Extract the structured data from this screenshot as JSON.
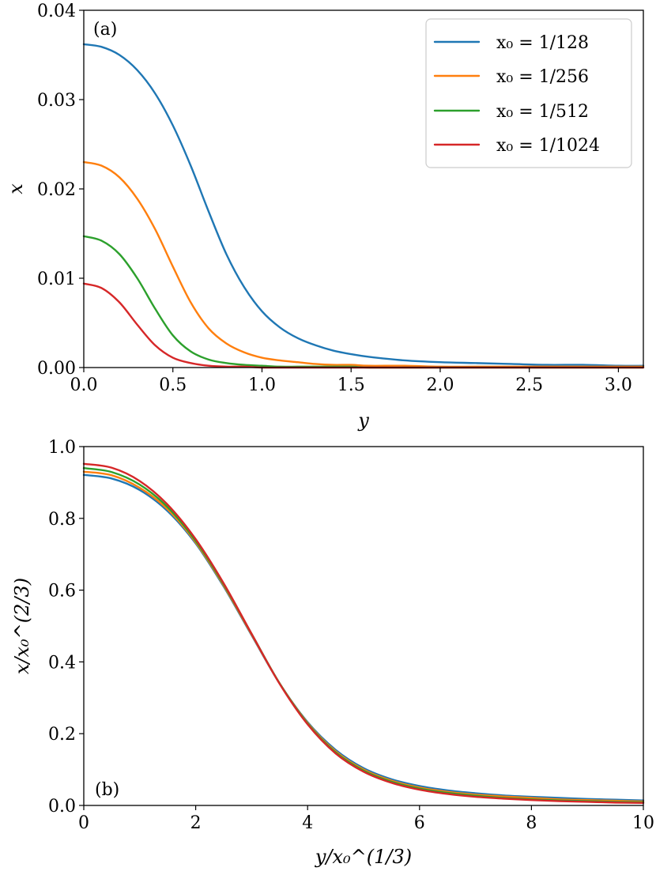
{
  "chart_data": [
    {
      "type": "line",
      "panel_label": "(a)",
      "xlabel": "y",
      "ylabel": "x",
      "xlim": [
        0,
        3.14
      ],
      "ylim": [
        0,
        0.04
      ],
      "xticks": [
        0,
        0.5,
        1.0,
        1.5,
        2.0,
        2.5,
        3.0
      ],
      "xtick_labels": [
        "0.0",
        "0.5",
        "1.0",
        "1.5",
        "2.0",
        "2.5",
        "3.0"
      ],
      "yticks": [
        0,
        0.01,
        0.02,
        0.03,
        0.04
      ],
      "ytick_labels": [
        "0.00",
        "0.01",
        "0.02",
        "0.03",
        "0.04"
      ],
      "grid": false,
      "legend_position": "top-right",
      "x": [
        0,
        0.1,
        0.2,
        0.3,
        0.4,
        0.5,
        0.6,
        0.7,
        0.8,
        0.9,
        1.0,
        1.1,
        1.2,
        1.3,
        1.4,
        1.5,
        1.6,
        1.8,
        2.0,
        2.2,
        2.4,
        2.6,
        2.8,
        3.0,
        3.14
      ],
      "series": [
        {
          "name": "x₀ = 1/128",
          "color": "#1f77b4",
          "values": [
            0.0362,
            0.0359,
            0.035,
            0.0333,
            0.0307,
            0.0271,
            0.0226,
            0.0175,
            0.0127,
            0.009,
            0.0063,
            0.0045,
            0.0033,
            0.0025,
            0.0019,
            0.0015,
            0.0012,
            0.0008,
            0.0006,
            0.0005,
            0.0004,
            0.0003,
            0.0003,
            0.0002,
            0.0002
          ]
        },
        {
          "name": "x₀ = 1/256",
          "color": "#ff7f0e",
          "values": [
            0.023,
            0.0226,
            0.0213,
            0.0189,
            0.0155,
            0.0113,
            0.0073,
            0.0044,
            0.0027,
            0.0017,
            0.0011,
            0.0008,
            0.0006,
            0.0004,
            0.0003,
            0.0003,
            0.0002,
            0.0002,
            0.0001,
            0.0001,
            0.0001,
            0.0001,
            0.0001,
            0.0001,
            0.0001
          ]
        },
        {
          "name": "x₀ = 1/512",
          "color": "#2ca02c",
          "values": [
            0.0147,
            0.0142,
            0.0127,
            0.01,
            0.0066,
            0.0036,
            0.0018,
            0.0009,
            0.0005,
            0.0003,
            0.0002,
            0.0001,
            0.0001,
            0.0001,
            0.0001,
            0.0001,
            0.0,
            0.0,
            0.0,
            0.0,
            0.0,
            0.0,
            0.0,
            0.0,
            0.0
          ]
        },
        {
          "name": "x₀ = 1/1024",
          "color": "#d62728",
          "values": [
            0.0094,
            0.0089,
            0.0073,
            0.0048,
            0.0025,
            0.0011,
            0.0005,
            0.0002,
            0.0001,
            0.0001,
            0.0,
            0.0,
            0.0,
            0.0,
            0.0,
            0.0,
            0.0,
            0.0,
            0.0,
            0.0,
            0.0,
            0.0,
            0.0,
            0.0,
            0.0
          ]
        }
      ]
    },
    {
      "type": "line",
      "panel_label": "(b)",
      "xlabel": "y/x₀^(1/3)",
      "ylabel": "x/x₀^(2/3)",
      "xlim": [
        0,
        10
      ],
      "ylim": [
        0,
        1.0
      ],
      "xticks": [
        0,
        2,
        4,
        6,
        8,
        10
      ],
      "xtick_labels": [
        "0",
        "2",
        "4",
        "6",
        "8",
        "10"
      ],
      "yticks": [
        0,
        0.2,
        0.4,
        0.6,
        0.8,
        1.0
      ],
      "ytick_labels": [
        "0.0",
        "0.2",
        "0.4",
        "0.6",
        "0.8",
        "1.0"
      ],
      "grid": false,
      "x": [
        0,
        0.5,
        1,
        1.5,
        2,
        2.5,
        3,
        3.5,
        4,
        4.5,
        5,
        5.5,
        6,
        6.5,
        7,
        7.5,
        8,
        8.5,
        9,
        9.5,
        10
      ],
      "series": [
        {
          "name": "x₀ = 1/128",
          "color": "#1f77b4",
          "values": [
            0.921,
            0.911,
            0.879,
            0.82,
            0.73,
            0.61,
            0.474,
            0.34,
            0.232,
            0.155,
            0.104,
            0.073,
            0.054,
            0.042,
            0.034,
            0.028,
            0.024,
            0.021,
            0.018,
            0.016,
            0.014
          ]
        },
        {
          "name": "x₀ = 1/256",
          "color": "#ff7f0e",
          "values": [
            0.93,
            0.92,
            0.885,
            0.825,
            0.733,
            0.613,
            0.476,
            0.34,
            0.23,
            0.151,
            0.1,
            0.069,
            0.05,
            0.038,
            0.03,
            0.025,
            0.021,
            0.017,
            0.015,
            0.013,
            0.011
          ]
        },
        {
          "name": "x₀ = 1/512",
          "color": "#2ca02c",
          "values": [
            0.94,
            0.929,
            0.894,
            0.831,
            0.737,
            0.616,
            0.478,
            0.34,
            0.228,
            0.148,
            0.097,
            0.066,
            0.047,
            0.035,
            0.027,
            0.021,
            0.017,
            0.014,
            0.012,
            0.01,
            0.009
          ]
        },
        {
          "name": "x₀ = 1/1024",
          "color": "#d62728",
          "values": [
            0.952,
            0.941,
            0.904,
            0.838,
            0.742,
            0.619,
            0.478,
            0.339,
            0.226,
            0.145,
            0.094,
            0.063,
            0.044,
            0.032,
            0.024,
            0.019,
            0.015,
            0.012,
            0.01,
            0.008,
            0.007
          ]
        }
      ]
    }
  ]
}
